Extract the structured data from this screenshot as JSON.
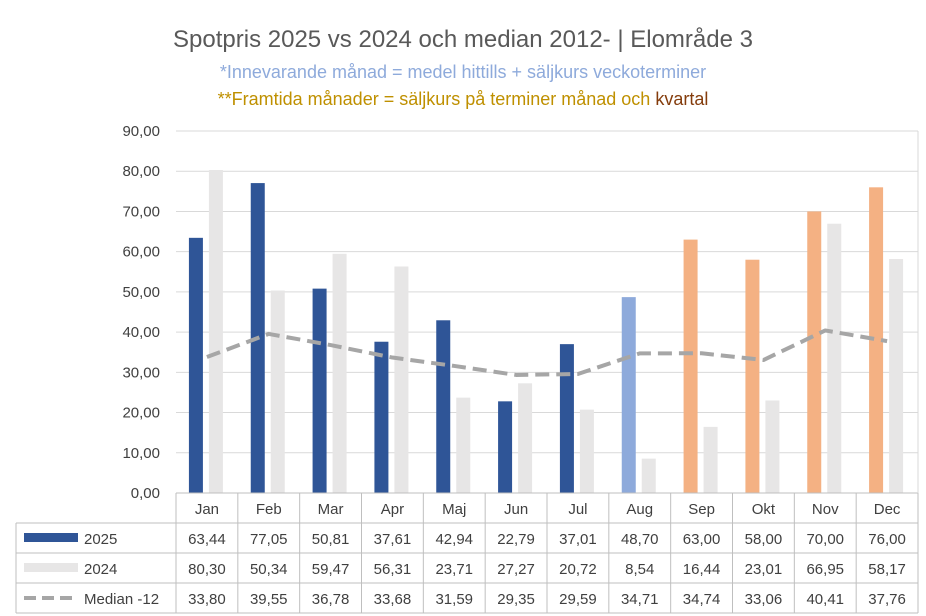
{
  "title": "Spotpris 2025 vs 2024 och median 2012- | Elområde 3",
  "subtitle1": "*Innevarande månad = medel hittills + säljkurs veckoterminer",
  "subtitle2_main": "**Framtida månader = säljkurs på terminer månad och",
  "subtitle2_tail": "kvartal",
  "colors": {
    "actual_2025": "#2f5597",
    "current_month": "#8eaadb",
    "future": "#f4b183",
    "y2024": "#e7e6e6",
    "median": "#a6a6a6",
    "title": "#595959",
    "subtitle1": "#8eaadb",
    "subtitle2": "#bf9000",
    "subtitle2_tail": "#843c0c"
  },
  "chart_data": {
    "type": "bar",
    "title": "Spotpris 2025 vs 2024 och median 2012- | Elområde 3",
    "categories": [
      "Jan",
      "Feb",
      "Mar",
      "Apr",
      "Maj",
      "Jun",
      "Jul",
      "Aug",
      "Sep",
      "Okt",
      "Nov",
      "Dec"
    ],
    "series": [
      {
        "name": "2025",
        "kind": "bar",
        "values": [
          63.44,
          77.05,
          50.81,
          37.61,
          42.94,
          22.79,
          37.01,
          48.7,
          63.0,
          58.0,
          70.0,
          76.0
        ],
        "display": [
          "63,44",
          "77,05",
          "50,81",
          "37,61",
          "42,94",
          "22,79",
          "37,01",
          "48,70",
          "63,00",
          "58,00",
          "70,00",
          "76,00"
        ]
      },
      {
        "name": "2024",
        "kind": "bar",
        "values": [
          80.3,
          50.34,
          59.47,
          56.31,
          23.71,
          27.27,
          20.72,
          8.54,
          16.44,
          23.01,
          66.95,
          58.17
        ],
        "display": [
          "80,30",
          "50,34",
          "59,47",
          "56,31",
          "23,71",
          "27,27",
          "20,72",
          "8,54",
          "16,44",
          "23,01",
          "66,95",
          "58,17"
        ]
      },
      {
        "name": "Median -12",
        "kind": "line",
        "style": "dashed",
        "values": [
          33.8,
          39.55,
          36.78,
          33.68,
          31.59,
          29.35,
          29.59,
          34.71,
          34.74,
          33.06,
          40.41,
          37.76
        ],
        "display": [
          "33,80",
          "39,55",
          "36,78",
          "33,68",
          "31,59",
          "29,35",
          "29,59",
          "34,71",
          "34,74",
          "33,06",
          "40,41",
          "37,76"
        ]
      }
    ],
    "month_status_2025": [
      "actual",
      "actual",
      "actual",
      "actual",
      "actual",
      "actual",
      "actual",
      "current",
      "future",
      "future",
      "future",
      "future"
    ],
    "ylim": [
      0,
      90
    ],
    "yticks": [
      "0,00",
      "10,00",
      "20,00",
      "30,00",
      "40,00",
      "50,00",
      "60,00",
      "70,00",
      "80,00",
      "90,00"
    ],
    "grid": true,
    "legend": "data-table-below"
  }
}
